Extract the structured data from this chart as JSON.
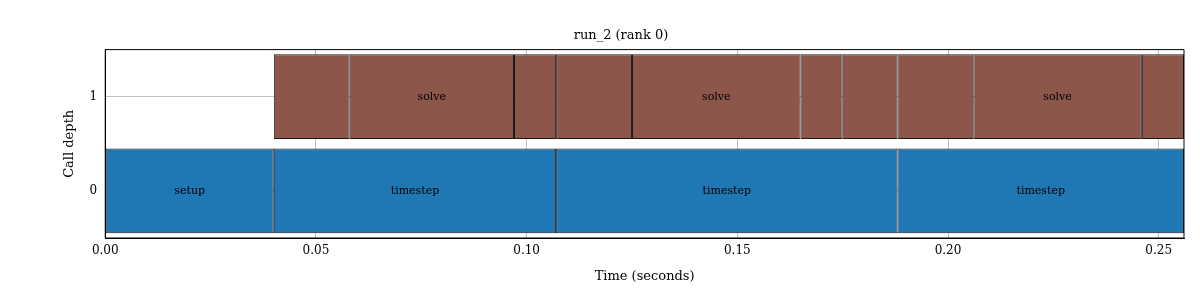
{
  "chart_data": {
    "type": "bar",
    "orientation": "horizontal",
    "title": "run_2 (rank 0)",
    "xlabel": "Time (seconds)",
    "ylabel": "Call depth",
    "categories": [
      "1",
      "0"
    ],
    "series": [
      {
        "name": "setup",
        "color": "#1f77b4",
        "values": [
          null,
          0.04
        ],
        "base": [
          null,
          0
        ]
      },
      {
        "name": "timestep",
        "color": "#1f77b4",
        "values": [
          null,
          0.067
        ],
        "base": [
          null,
          0.04
        ]
      },
      {
        "name": "timestep",
        "color": "#1f77b4",
        "values": [
          null,
          0.081
        ],
        "base": [
          null,
          0.107
        ]
      },
      {
        "name": "timestep",
        "color": "#1f77b4",
        "values": [
          null,
          0.068
        ],
        "base": [
          null,
          0.188
        ]
      },
      {
        "color": "#8c564b",
        "values": [
          0.018,
          null
        ],
        "base": [
          0.04,
          null
        ]
      },
      {
        "name": "solve",
        "color": "#8c564b",
        "values": [
          0.039,
          null
        ],
        "base": [
          0.058,
          null
        ]
      },
      {
        "color": "#8c564b",
        "values": [
          0.01,
          null
        ],
        "base": [
          0.097,
          null
        ]
      },
      {
        "color": "#8c564b",
        "values": [
          0.018,
          null
        ],
        "base": [
          0.107,
          null
        ]
      },
      {
        "name": "solve",
        "color": "#8c564b",
        "values": [
          0.04,
          null
        ],
        "base": [
          0.125,
          null
        ]
      },
      {
        "color": "#8c564b",
        "values": [
          0.01,
          null
        ],
        "base": [
          0.165,
          null
        ]
      },
      {
        "color": "#8c564b",
        "values": [
          0.013,
          null
        ],
        "base": [
          0.175,
          null
        ]
      },
      {
        "color": "#8c564b",
        "values": [
          0.018,
          null
        ],
        "base": [
          0.188,
          null
        ]
      },
      {
        "name": "solve",
        "color": "#8c564b",
        "values": [
          0.04,
          null
        ],
        "base": [
          0.206,
          null
        ]
      },
      {
        "color": "#8c564b",
        "values": [
          0.01,
          null
        ],
        "base": [
          0.246,
          null
        ]
      }
    ],
    "xlim": [
      0,
      0.256
    ],
    "xticks": [
      {
        "value": 0,
        "label": "0.00"
      },
      0.05,
      {
        "value": 0.1,
        "label": "0.10"
      },
      0.15,
      {
        "value": 0.2,
        "label": "0.20"
      },
      0.25
    ],
    "grid": true,
    "legend": false
  }
}
